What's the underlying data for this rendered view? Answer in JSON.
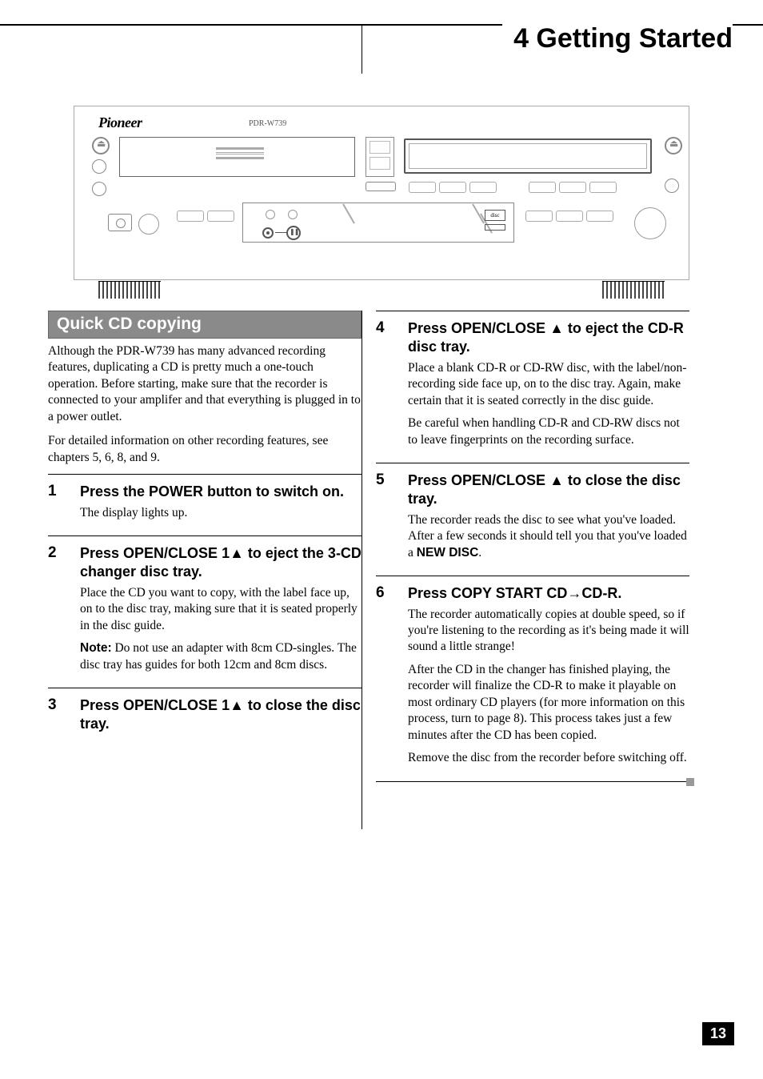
{
  "chapter": {
    "title": "4 Getting Started"
  },
  "page_number": "13",
  "device": {
    "brand": "Pioneer",
    "model": "PDR-W739",
    "disc_logo": "disc"
  },
  "section": {
    "heading": "Quick CD copying",
    "intro1": "Although the PDR-W739 has many advanced recording features, duplicating a CD is pretty much a one-touch operation. Before starting, make sure that the recorder is connected to your amplifer and that everything is plugged in to a power outlet.",
    "intro2": "For detailed information on other recording features, see chapters 5, 6, 8, and 9."
  },
  "steps": {
    "s1": {
      "num": "1",
      "title": "Press the POWER button to switch on.",
      "p1": "The display lights up."
    },
    "s2": {
      "num": "2",
      "title_a": "Press OPEN/CLOSE 1",
      "title_b": " to eject the 3-CD changer disc tray.",
      "p1": "Place the CD you want to copy, with the label face up, on to the disc tray, making sure that it is seated properly in the disc guide.",
      "note_label": "Note:",
      "note": " Do not use an adapter with 8cm CD-singles. The disc tray has guides for both 12cm and 8cm discs."
    },
    "s3": {
      "num": "3",
      "title_a": "Press OPEN/CLOSE 1",
      "title_b": " to close the disc tray."
    },
    "s4": {
      "num": "4",
      "title_a": "Press OPEN/CLOSE ",
      "title_b": " to eject the CD-R disc tray.",
      "p1": "Place a blank CD-R or CD-RW disc, with the label/non-recording side face up, on to the disc tray. Again, make certain that it is seated correctly in the disc guide.",
      "p2": "Be careful when handling CD-R and CD-RW discs not to leave fingerprints on the recording surface."
    },
    "s5": {
      "num": "5",
      "title_a": "Press OPEN/CLOSE ",
      "title_b": " to close the disc tray.",
      "p1_a": "The recorder reads the disc to see what you've loaded. After a few seconds it should tell you that you've loaded a ",
      "p1_b": "NEW DISC",
      "p1_c": "."
    },
    "s6": {
      "num": "6",
      "title_a": "Press COPY START CD",
      "title_b": "CD-R.",
      "p1": "The recorder automatically copies at double speed, so if you're listening to the recording as it's being made it will sound a little strange!",
      "p2": "After the CD in the changer has finished playing, the recorder will finalize the CD-R to make it playable on most ordinary CD players (for more information on this process, turn to page 8). This process takes just a few minutes after the CD has been copied.",
      "p3": "Remove the disc from the recorder before switching off."
    }
  },
  "symbols": {
    "eject": "▲",
    "arrow": "→"
  }
}
